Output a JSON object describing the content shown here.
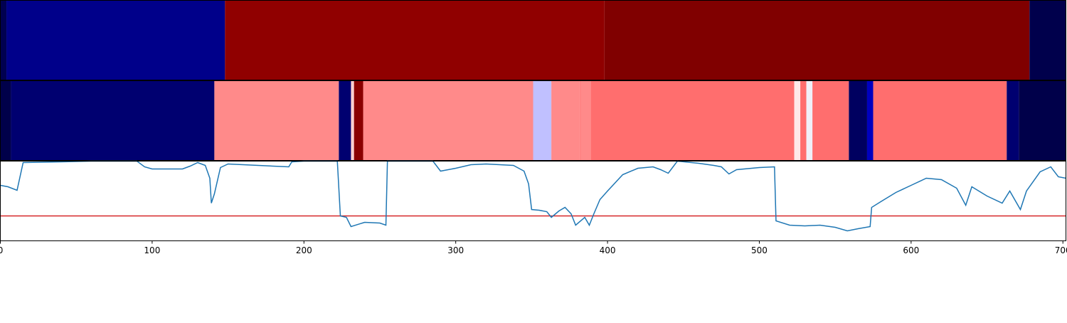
{
  "chart_data": [
    {
      "type": "strip",
      "xlim": [
        0,
        702
      ],
      "segments": [
        {
          "start": 0,
          "end": 4,
          "color": "#000050"
        },
        {
          "start": 4,
          "end": 148,
          "color": "#00008a"
        },
        {
          "start": 148,
          "end": 398,
          "color": "#900000"
        },
        {
          "start": 398,
          "end": 678,
          "color": "#800000"
        },
        {
          "start": 678,
          "end": 702,
          "color": "#00004c"
        }
      ]
    },
    {
      "type": "strip",
      "xlim": [
        0,
        702
      ],
      "segments": [
        {
          "start": 0,
          "end": 7,
          "color": "#00004a"
        },
        {
          "start": 7,
          "end": 141,
          "color": "#000070"
        },
        {
          "start": 141,
          "end": 223,
          "color": "#ff8a8a"
        },
        {
          "start": 223,
          "end": 231,
          "color": "#000070"
        },
        {
          "start": 231,
          "end": 233,
          "color": "#ffd0d0"
        },
        {
          "start": 233,
          "end": 239,
          "color": "#8a0000"
        },
        {
          "start": 239,
          "end": 351,
          "color": "#ff8a8a"
        },
        {
          "start": 351,
          "end": 363,
          "color": "#c0c0ff"
        },
        {
          "start": 363,
          "end": 382,
          "color": "#ff8a8a"
        },
        {
          "start": 382,
          "end": 383,
          "color": "#ff7a7a"
        },
        {
          "start": 383,
          "end": 389,
          "color": "#ff8a8a"
        },
        {
          "start": 389,
          "end": 523,
          "color": "#ff6e6e"
        },
        {
          "start": 523,
          "end": 527,
          "color": "#ffe8e8"
        },
        {
          "start": 527,
          "end": 531,
          "color": "#ff6e6e"
        },
        {
          "start": 531,
          "end": 535,
          "color": "#f0f0f8"
        },
        {
          "start": 535,
          "end": 559,
          "color": "#ff6e6e"
        },
        {
          "start": 559,
          "end": 571,
          "color": "#000060"
        },
        {
          "start": 571,
          "end": 575,
          "color": "#0000c0"
        },
        {
          "start": 575,
          "end": 663,
          "color": "#ff6e6e"
        },
        {
          "start": 663,
          "end": 671,
          "color": "#000070"
        },
        {
          "start": 671,
          "end": 702,
          "color": "#00004a"
        }
      ]
    },
    {
      "type": "line",
      "xlim": [
        0,
        702
      ],
      "ylim": [
        0,
        112
      ],
      "xticks": [
        0,
        100,
        200,
        300,
        400,
        500,
        600,
        700
      ],
      "threshold": 35,
      "threshold_color": "#d62728",
      "series": [
        {
          "color": "#1f77b4",
          "x": [
            0,
            5,
            11,
            15,
            40,
            60,
            90,
            95,
            100,
            120,
            125,
            130,
            135,
            138,
            139,
            141,
            145,
            150,
            170,
            190,
            192,
            200,
            222,
            224,
            228,
            231,
            240,
            250,
            254,
            255,
            285,
            290,
            300,
            310,
            320,
            338,
            345,
            348,
            350,
            355,
            360,
            363,
            368,
            372,
            376,
            379,
            385,
            388,
            391,
            395,
            400,
            410,
            420,
            430,
            435,
            440,
            446,
            460,
            470,
            475,
            480,
            485,
            490,
            500,
            510,
            511,
            520,
            530,
            540,
            550,
            558,
            565,
            573,
            574,
            580,
            590,
            600,
            610,
            620,
            630,
            636,
            640,
            650,
            660,
            665,
            672,
            676,
            685,
            692,
            697,
            702
          ],
          "values": [
            78,
            76,
            71,
            110,
            111,
            112,
            112,
            104,
            101,
            101,
            105,
            110,
            106,
            88,
            53,
            66,
            103,
            108,
            106,
            104,
            111,
            112,
            112,
            35,
            33,
            20,
            26,
            25,
            22,
            112,
            112,
            98,
            102,
            107,
            108,
            106,
            98,
            80,
            44,
            43,
            41,
            33,
            42,
            47,
            38,
            22,
            33,
            22,
            38,
            58,
            70,
            93,
            102,
            104,
            100,
            95,
            112,
            109,
            106,
            104,
            94,
            100,
            101,
            103,
            104,
            28,
            22,
            21,
            22,
            19,
            14,
            17,
            20,
            47,
            55,
            68,
            78,
            88,
            86,
            74,
            50,
            76,
            63,
            53,
            70,
            44,
            70,
            97,
            104,
            90,
            88
          ]
        }
      ]
    }
  ]
}
